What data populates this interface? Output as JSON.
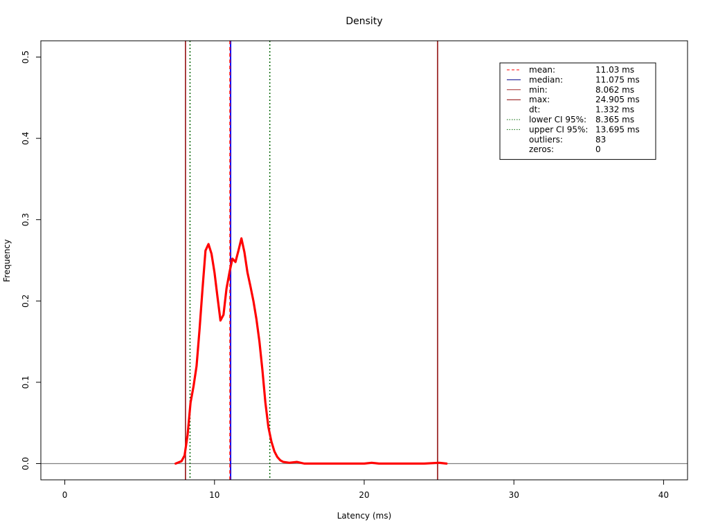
{
  "chart_data": {
    "type": "line",
    "title": "Density",
    "xlabel": "Latency (ms)",
    "ylabel": "Frequency",
    "xlim": [
      -1.6,
      41.6
    ],
    "ylim": [
      -0.02,
      0.52
    ],
    "x_ticks": [
      0,
      10,
      20,
      30,
      40
    ],
    "x_tick_labels": [
      "0",
      "10",
      "20",
      "30",
      "40"
    ],
    "y_ticks": [
      0.0,
      0.1,
      0.2,
      0.3,
      0.4,
      0.5
    ],
    "y_tick_labels": [
      "0.0",
      "0.1",
      "0.2",
      "0.3",
      "0.4",
      "0.5"
    ],
    "grid": false,
    "series": [
      {
        "color": "#ff0000",
        "x": [
          7.4,
          7.8,
          8.0,
          8.2,
          8.4,
          8.6,
          8.8,
          9.0,
          9.2,
          9.4,
          9.6,
          9.8,
          10.0,
          10.2,
          10.4,
          10.6,
          10.8,
          11.0,
          11.2,
          11.4,
          11.6,
          11.8,
          12.0,
          12.2,
          12.4,
          12.6,
          12.8,
          13.0,
          13.2,
          13.4,
          13.6,
          13.8,
          14.0,
          14.2,
          14.4,
          14.6,
          15.0,
          15.5,
          16.0,
          17.0,
          18.0,
          19.0,
          20.0,
          20.5,
          21.0,
          22.0,
          23.0,
          24.0,
          25.0,
          25.5
        ],
        "y": [
          0.0,
          0.003,
          0.01,
          0.035,
          0.075,
          0.095,
          0.12,
          0.165,
          0.215,
          0.262,
          0.27,
          0.258,
          0.235,
          0.205,
          0.176,
          0.183,
          0.215,
          0.235,
          0.252,
          0.248,
          0.262,
          0.277,
          0.26,
          0.235,
          0.218,
          0.2,
          0.178,
          0.15,
          0.115,
          0.075,
          0.045,
          0.027,
          0.015,
          0.008,
          0.004,
          0.002,
          0.001,
          0.002,
          0.0,
          0.0,
          0.0,
          0.0,
          0.0,
          0.001,
          0.0,
          0.0,
          0.0,
          0.0,
          0.001,
          0.0
        ]
      }
    ],
    "vlines": [
      {
        "key": "min",
        "x": 8.062,
        "color": "#8b0000",
        "style": "solid"
      },
      {
        "key": "max",
        "x": 24.905,
        "color": "#8b0000",
        "style": "solid"
      },
      {
        "key": "lower_ci",
        "x": 8.365,
        "color": "#006400",
        "style": "dotted"
      },
      {
        "key": "upper_ci",
        "x": 13.695,
        "color": "#006400",
        "style": "dotted"
      },
      {
        "key": "median",
        "x": 11.075,
        "color": "#0000ff",
        "style": "solid"
      },
      {
        "key": "mean",
        "x": 11.03,
        "color": "#ff0000",
        "style": "dashed"
      }
    ],
    "hlines": [
      {
        "key": "zero",
        "y": 0.0,
        "color": "#808080",
        "style": "solid"
      }
    ],
    "legend": {
      "position": "top-right",
      "items": [
        {
          "label": "mean:",
          "value": "11.03 ms",
          "line": "dashed",
          "color": "#ff0000"
        },
        {
          "label": "median:",
          "value": "11.075 ms",
          "line": "solid",
          "color": "#00008b"
        },
        {
          "label": "min:",
          "value": "8.062 ms",
          "line": "solid",
          "color": "#a52a2a"
        },
        {
          "label": "max:",
          "value": "24.905 ms",
          "line": "solid",
          "color": "#8b0000"
        },
        {
          "label": "dt:",
          "value": "1.332 ms",
          "line": "none",
          "color": ""
        },
        {
          "label": "lower CI 95%:",
          "value": "8.365 ms",
          "line": "dotted",
          "color": "#006400"
        },
        {
          "label": "upper CI 95%:",
          "value": "13.695 ms",
          "line": "dotted",
          "color": "#006400"
        },
        {
          "label": "outliers:",
          "value": "83",
          "line": "none",
          "color": ""
        },
        {
          "label": "zeros:",
          "value": "0",
          "line": "none",
          "color": ""
        }
      ]
    }
  }
}
